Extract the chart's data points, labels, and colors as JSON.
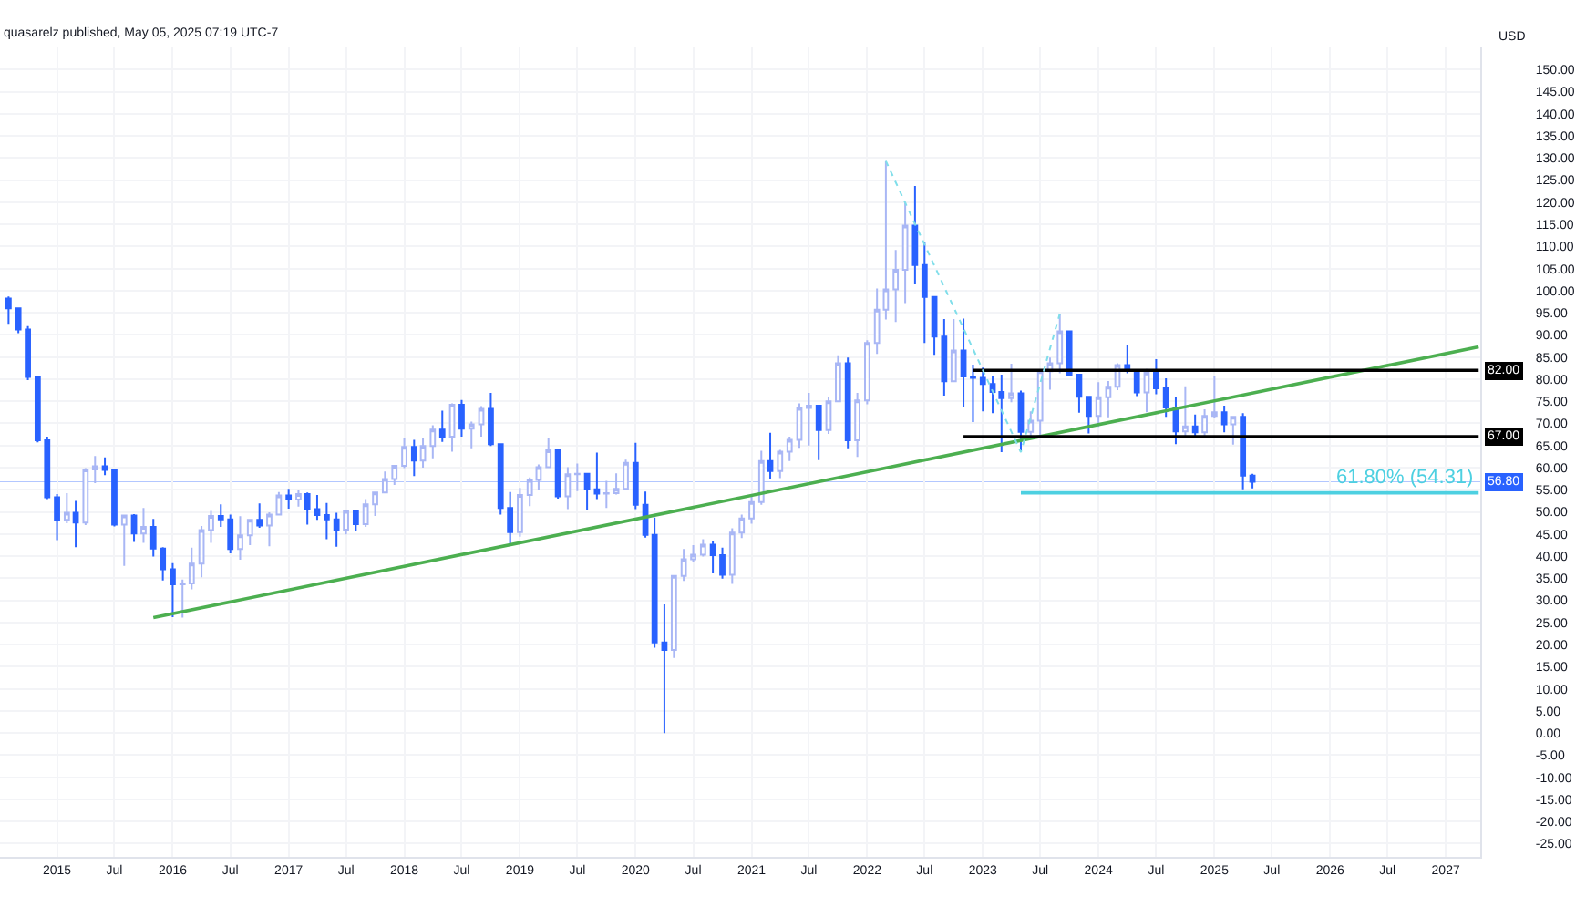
{
  "chart_data": {
    "type": "candlestick",
    "ylabel": "USD",
    "annotations": [
      "quasarelz published, May 05, 2025 07:19 UTC-7",
      {
        "text": "82.00",
        "x": "2027-04-20",
        "y": 82
      },
      {
        "text": "67.00",
        "x": "2027-04-20",
        "y": 67
      },
      {
        "text": "61.80% (54.31)",
        "x": "2027-04-10",
        "y": 54.31
      }
    ],
    "x": [
      "2014-08",
      "2014-09",
      "2014-10",
      "2014-11",
      "2014-12",
      "2015-01",
      "2015-02",
      "2015-03",
      "2015-04",
      "2015-05",
      "2015-06",
      "2015-07",
      "2015-08",
      "2015-09",
      "2015-10",
      "2015-11",
      "2015-12",
      "2016-01",
      "2016-02",
      "2016-03",
      "2016-04",
      "2016-05",
      "2016-06",
      "2016-07",
      "2016-08",
      "2016-09",
      "2016-10",
      "2016-11",
      "2016-12",
      "2017-01",
      "2017-02",
      "2017-03",
      "2017-04",
      "2017-05",
      "2017-06",
      "2017-07",
      "2017-08",
      "2017-09",
      "2017-10",
      "2017-11",
      "2017-12",
      "2018-01",
      "2018-02",
      "2018-03",
      "2018-04",
      "2018-05",
      "2018-06",
      "2018-07",
      "2018-08",
      "2018-09",
      "2018-10",
      "2018-11",
      "2018-12",
      "2019-01",
      "2019-02",
      "2019-03",
      "2019-04",
      "2019-05",
      "2019-06",
      "2019-07",
      "2019-08",
      "2019-09",
      "2019-10",
      "2019-11",
      "2019-12",
      "2020-01",
      "2020-02",
      "2020-03",
      "2020-04",
      "2020-05",
      "2020-06",
      "2020-07",
      "2020-08",
      "2020-09",
      "2020-10",
      "2020-11",
      "2020-12",
      "2021-01",
      "2021-02",
      "2021-03",
      "2021-04",
      "2021-05",
      "2021-06",
      "2021-07",
      "2021-08",
      "2021-09",
      "2021-10",
      "2021-11",
      "2021-12",
      "2022-01",
      "2022-02",
      "2022-03",
      "2022-04",
      "2022-05",
      "2022-06",
      "2022-07",
      "2022-08",
      "2022-09",
      "2022-10",
      "2022-11",
      "2022-12",
      "2023-01",
      "2023-02",
      "2023-03",
      "2023-04",
      "2023-05",
      "2023-06",
      "2023-07",
      "2023-08",
      "2023-09",
      "2023-10",
      "2023-11",
      "2023-12",
      "2024-01",
      "2024-02",
      "2024-03",
      "2024-04",
      "2024-05",
      "2024-06",
      "2024-07",
      "2024-08",
      "2024-09",
      "2024-10",
      "2024-11",
      "2024-12",
      "2025-01",
      "2025-02",
      "2025-03",
      "2025-04",
      "2025-05"
    ],
    "ohlc": [
      [
        98.2,
        98.7,
        92.5,
        96
      ],
      [
        96,
        96,
        90.4,
        91.2
      ],
      [
        91.2,
        92,
        79.8,
        80.5
      ],
      [
        80.5,
        80.5,
        65.7,
        66.2
      ],
      [
        66.2,
        67,
        52.9,
        53.3
      ],
      [
        53.3,
        54,
        43.6,
        48.2
      ],
      [
        48.2,
        54.2,
        47.4,
        49.8
      ],
      [
        49.8,
        52.5,
        42,
        47.6
      ],
      [
        47.6,
        59.9,
        47,
        59.6
      ],
      [
        59.6,
        62.6,
        56.5,
        60.3
      ],
      [
        60.3,
        62.3,
        58.3,
        59.5
      ],
      [
        59.5,
        59.7,
        46.7,
        47.1
      ],
      [
        47.1,
        49.3,
        37.8,
        49.2
      ],
      [
        49.2,
        49.5,
        43.2,
        45.1
      ],
      [
        45.1,
        50.9,
        43,
        46.6
      ],
      [
        46.6,
        48.4,
        39.9,
        41.7
      ],
      [
        41.7,
        42,
        34.5,
        37
      ],
      [
        37,
        38.4,
        26.2,
        33.6
      ],
      [
        33.6,
        34.7,
        26.1,
        33.8
      ],
      [
        33.8,
        41.9,
        32.5,
        38.3
      ],
      [
        38.3,
        46.8,
        35.2,
        45.9
      ],
      [
        45.9,
        50.2,
        43,
        49.1
      ],
      [
        49.1,
        51.7,
        46.6,
        48.3
      ],
      [
        48.3,
        49.4,
        40.6,
        41.6
      ],
      [
        41.6,
        49,
        39.2,
        44.7
      ],
      [
        44.7,
        48.2,
        42.5,
        48.2
      ],
      [
        48.2,
        51.9,
        46.4,
        46.9
      ],
      [
        46.9,
        49.9,
        42.2,
        49.4
      ],
      [
        49.4,
        54.5,
        49.4,
        53.7
      ],
      [
        53.7,
        55.2,
        50.7,
        52.8
      ],
      [
        52.8,
        54.9,
        51.2,
        54
      ],
      [
        54,
        54.4,
        47.1,
        50.6
      ],
      [
        50.6,
        53.8,
        48.2,
        49.3
      ],
      [
        49.3,
        52,
        43.8,
        48.3
      ],
      [
        48.3,
        49.8,
        42.1,
        46
      ],
      [
        46,
        50.4,
        44.9,
        50.2
      ],
      [
        50.2,
        50.4,
        45.6,
        47.2
      ],
      [
        47.2,
        52.9,
        46.6,
        51.7
      ],
      [
        51.7,
        54.6,
        49.1,
        54.4
      ],
      [
        54.4,
        59.1,
        54.2,
        57.4
      ],
      [
        57.4,
        60.5,
        56.1,
        60.4
      ],
      [
        60.4,
        66.6,
        59.9,
        64.7
      ],
      [
        64.7,
        66.3,
        58.1,
        61.6
      ],
      [
        61.6,
        66.6,
        60,
        64.9
      ],
      [
        64.9,
        69.6,
        62.1,
        68.6
      ],
      [
        68.6,
        72.9,
        65.8,
        67
      ],
      [
        67,
        74.5,
        63.6,
        74.2
      ],
      [
        74.2,
        75.3,
        67,
        68.8
      ],
      [
        68.8,
        70.4,
        64.4,
        69.8
      ],
      [
        69.8,
        73.9,
        67,
        73.3
      ],
      [
        73.3,
        76.9,
        64.9,
        65.3
      ],
      [
        65.3,
        65.4,
        49.4,
        50.9
      ],
      [
        50.9,
        54.5,
        42.4,
        45.4
      ],
      [
        45.4,
        55.4,
        44.4,
        53.8
      ],
      [
        53.8,
        57.8,
        51.3,
        57.2
      ],
      [
        57.2,
        60.7,
        55,
        60.1
      ],
      [
        60.1,
        66.6,
        60,
        63.9
      ],
      [
        63.9,
        64.1,
        53,
        53.5
      ],
      [
        53.5,
        60.1,
        50.6,
        58.5
      ],
      [
        58.5,
        60.9,
        54.7,
        58.6
      ],
      [
        58.6,
        58.8,
        50.5,
        55.1
      ],
      [
        55.1,
        63.4,
        52.9,
        54.1
      ],
      [
        54.1,
        57,
        50.9,
        54.2
      ],
      [
        54.2,
        58.7,
        53.9,
        55.2
      ],
      [
        55.2,
        61.8,
        55,
        61.1
      ],
      [
        61.1,
        65.6,
        50.6,
        51.6
      ],
      [
        51.6,
        54.6,
        44.2,
        44.8
      ],
      [
        44.8,
        48.7,
        19.3,
        20.5
      ],
      [
        20.5,
        29.1,
        0,
        18.8
      ],
      [
        18.8,
        35.7,
        17,
        35.5
      ],
      [
        35.5,
        41.6,
        34.4,
        39.3
      ],
      [
        39.3,
        42.5,
        38.7,
        40.3
      ],
      [
        40.3,
        43.8,
        39.9,
        42.6
      ],
      [
        42.6,
        43.4,
        36.1,
        40.2
      ],
      [
        40.2,
        41.9,
        34.9,
        35.8
      ],
      [
        35.8,
        46.3,
        33.7,
        45.3
      ],
      [
        45.3,
        49.4,
        44.1,
        48.5
      ],
      [
        48.5,
        53.9,
        47.3,
        52.2
      ],
      [
        52.2,
        63.8,
        51.6,
        61.5
      ],
      [
        61.5,
        67.9,
        57.3,
        59.2
      ],
      [
        59.2,
        64,
        57.6,
        63.6
      ],
      [
        63.6,
        67,
        61.5,
        66.3
      ],
      [
        66.3,
        74.5,
        64.5,
        73.5
      ],
      [
        73.5,
        76.9,
        65,
        74
      ],
      [
        74,
        74,
        61.7,
        68.5
      ],
      [
        68.5,
        76,
        67.6,
        75
      ],
      [
        75,
        85.4,
        74.9,
        83.6
      ],
      [
        83.6,
        84.9,
        64.4,
        66.2
      ],
      [
        66.2,
        76.9,
        62.4,
        75.2
      ],
      [
        75.2,
        88.8,
        74.3,
        88.2
      ],
      [
        88.2,
        100.5,
        85.7,
        95.7
      ],
      [
        95.7,
        129.3,
        93.5,
        100.3
      ],
      [
        100.3,
        109.2,
        92.9,
        104.7
      ],
      [
        104.7,
        119.9,
        97.2,
        114.7
      ],
      [
        114.7,
        123.7,
        101.5,
        105.8
      ],
      [
        105.8,
        111.1,
        88.2,
        98.6
      ],
      [
        98.6,
        98.7,
        85.5,
        89.6
      ],
      [
        89.6,
        93.6,
        76.3,
        79.5
      ],
      [
        79.5,
        93.6,
        79.3,
        86.5
      ],
      [
        86.5,
        93.7,
        73.6,
        80.6
      ],
      [
        80.6,
        83.3,
        70.3,
        80.3
      ],
      [
        80.3,
        82.6,
        72.7,
        78.9
      ],
      [
        78.9,
        80.6,
        72.3,
        77.1
      ],
      [
        77.1,
        81,
        63.5,
        75.7
      ],
      [
        75.7,
        83.5,
        74.8,
        76.8
      ],
      [
        76.8,
        77.4,
        63.6,
        68.1
      ],
      [
        68.1,
        72.7,
        66.8,
        70.6
      ],
      [
        70.6,
        82,
        67.1,
        81.8
      ],
      [
        81.8,
        84.9,
        77.6,
        83.6
      ],
      [
        83.6,
        94.8,
        81.3,
        90.8
      ],
      [
        90.8,
        90.8,
        80.6,
        81
      ],
      [
        81,
        81,
        72.4,
        76
      ],
      [
        76,
        76.2,
        67.7,
        71.7
      ],
      [
        71.7,
        79.3,
        69.2,
        75.9
      ],
      [
        75.9,
        79.6,
        71.4,
        78.3
      ],
      [
        78.3,
        83.6,
        77.5,
        83.2
      ],
      [
        83.2,
        87.7,
        81.3,
        81.9
      ],
      [
        81.9,
        82.2,
        76.2,
        77
      ],
      [
        77,
        82.3,
        72.5,
        81.5
      ],
      [
        81.5,
        84.5,
        76.6,
        77.9
      ],
      [
        77.9,
        80.2,
        71.5,
        73.6
      ],
      [
        73.6,
        76,
        65.3,
        68.2
      ],
      [
        68.2,
        78.4,
        66.9,
        69.3
      ],
      [
        69.3,
        72,
        66.8,
        68
      ],
      [
        68,
        73.2,
        67.2,
        71.7
      ],
      [
        71.7,
        80.8,
        71.3,
        72.5
      ],
      [
        72.5,
        74,
        68,
        69.8
      ],
      [
        69.8,
        71.6,
        65.2,
        71.5
      ],
      [
        71.5,
        72.3,
        55.1,
        58.2
      ],
      [
        58.2,
        58.6,
        55.3,
        56.8
      ]
    ],
    "series": [
      {
        "type": "line",
        "color": "#4caf50",
        "x": [
          "2015-11",
          "2027-04-15"
        ],
        "values": [
          26.1,
          87.3
        ]
      },
      {
        "type": "line",
        "color": "#000000",
        "x": [
          "2022-12",
          "2027-04-15"
        ],
        "values": [
          82,
          82
        ]
      },
      {
        "type": "line",
        "color": "#000000",
        "x": [
          "2022-11",
          "2027-04-15"
        ],
        "values": [
          67,
          67
        ]
      },
      {
        "type": "line",
        "color": "#4dd0e1",
        "x": [
          "2023-05",
          "2027-04-15"
        ],
        "values": [
          54.31,
          54.31
        ]
      },
      {
        "type": "line",
        "color": "#80deea",
        "line_style": "dotted",
        "x": [
          "2022-03",
          "2023-05",
          "2023-09"
        ],
        "values": [
          129.3,
          63.5,
          94.8
        ]
      }
    ],
    "ref_lines": [
      {
        "axis": "y",
        "value": 56.8,
        "label": "56.80",
        "color": "#2962ff"
      }
    ],
    "xlim": [
      "2014-07-05",
      "2027-04-20"
    ],
    "ylim": [
      -28,
      155
    ],
    "xticks": [
      {
        "value": "2015-01",
        "label": "2015"
      },
      {
        "value": "2015-07",
        "label": "Jul"
      },
      {
        "value": "2016-01",
        "label": "2016"
      },
      {
        "value": "2016-07",
        "label": "Jul"
      },
      {
        "value": "2017-01",
        "label": "2017"
      },
      {
        "value": "2017-07",
        "label": "Jul"
      },
      {
        "value": "2018-01",
        "label": "2018"
      },
      {
        "value": "2018-07",
        "label": "Jul"
      },
      {
        "value": "2019-01",
        "label": "2019"
      },
      {
        "value": "2019-07",
        "label": "Jul"
      },
      {
        "value": "2020-01",
        "label": "2020"
      },
      {
        "value": "2020-07",
        "label": "Jul"
      },
      {
        "value": "2021-01",
        "label": "2021"
      },
      {
        "value": "2021-07",
        "label": "Jul"
      },
      {
        "value": "2022-01",
        "label": "2022"
      },
      {
        "value": "2022-07",
        "label": "Jul"
      },
      {
        "value": "2023-01",
        "label": "2023"
      },
      {
        "value": "2023-07",
        "label": "Jul"
      },
      {
        "value": "2024-01",
        "label": "2024"
      },
      {
        "value": "2024-07",
        "label": "Jul"
      },
      {
        "value": "2025-01",
        "label": "2025"
      },
      {
        "value": "2025-07",
        "label": "Jul"
      },
      {
        "value": "2026-01",
        "label": "2026"
      },
      {
        "value": "2026-07",
        "label": "Jul"
      },
      {
        "value": "2027-01",
        "label": "2027"
      }
    ],
    "yticks": [
      {
        "value": 150,
        "label": "150.00"
      },
      {
        "value": 145,
        "label": "145.00"
      },
      {
        "value": 140,
        "label": "140.00"
      },
      {
        "value": 135,
        "label": "135.00"
      },
      {
        "value": 130,
        "label": "130.00"
      },
      {
        "value": 125,
        "label": "125.00"
      },
      {
        "value": 120,
        "label": "120.00"
      },
      {
        "value": 115,
        "label": "115.00"
      },
      {
        "value": 110,
        "label": "110.00"
      },
      {
        "value": 105,
        "label": "105.00"
      },
      {
        "value": 100,
        "label": "100.00"
      },
      {
        "value": 95,
        "label": "95.00"
      },
      {
        "value": 90,
        "label": "90.00"
      },
      {
        "value": 85,
        "label": "85.00"
      },
      {
        "value": 80,
        "label": "80.00"
      },
      {
        "value": 75,
        "label": "75.00"
      },
      {
        "value": 70,
        "label": "70.00"
      },
      {
        "value": 65,
        "label": "65.00"
      },
      {
        "value": 60,
        "label": "60.00"
      },
      {
        "value": 55,
        "label": "55.00"
      },
      {
        "value": 50,
        "label": "50.00"
      },
      {
        "value": 45,
        "label": "45.00"
      },
      {
        "value": 40,
        "label": "40.00"
      },
      {
        "value": 35,
        "label": "35.00"
      },
      {
        "value": 30,
        "label": "30.00"
      },
      {
        "value": 25,
        "label": "25.00"
      },
      {
        "value": 20,
        "label": "20.00"
      },
      {
        "value": 15,
        "label": "15.00"
      },
      {
        "value": 10,
        "label": "10.00"
      },
      {
        "value": 5,
        "label": "5.00"
      },
      {
        "value": 0,
        "label": "0.00"
      },
      {
        "value": -5,
        "label": "-5.00"
      },
      {
        "value": -10,
        "label": "-10.00"
      },
      {
        "value": -15,
        "label": "-15.00"
      },
      {
        "value": -20,
        "label": "-20.00"
      },
      {
        "value": -25,
        "label": "-25.00"
      }
    ],
    "grid": true
  }
}
